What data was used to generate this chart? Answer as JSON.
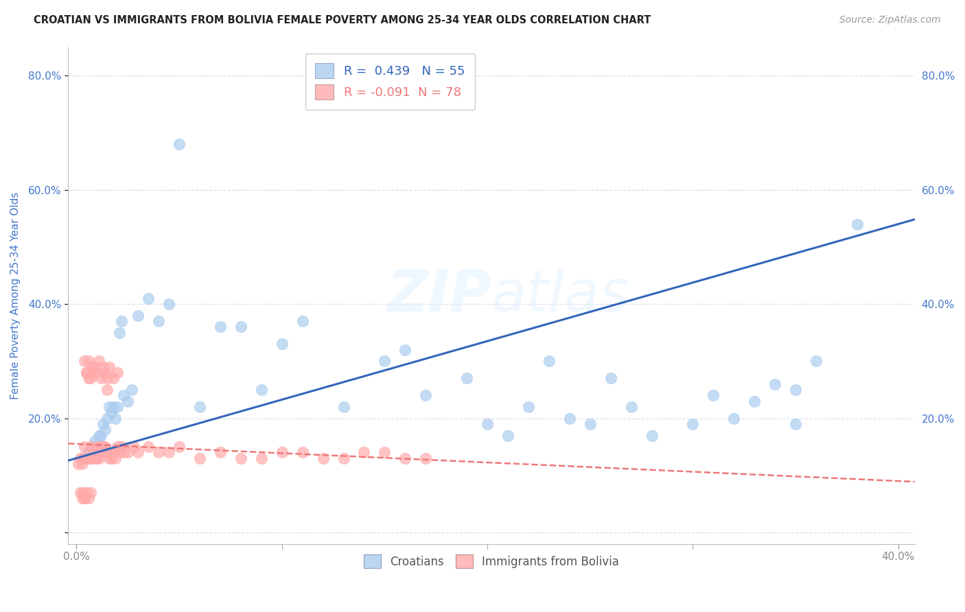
{
  "title": "CROATIAN VS IMMIGRANTS FROM BOLIVIA FEMALE POVERTY AMONG 25-34 YEAR OLDS CORRELATION CHART",
  "source": "Source: ZipAtlas.com",
  "ylabel": "Female Poverty Among 25-34 Year Olds",
  "xlim": [
    -0.004,
    0.408
  ],
  "ylim": [
    -0.02,
    0.85
  ],
  "x_ticks": [
    0.0,
    0.1,
    0.2,
    0.3,
    0.4
  ],
  "x_tick_labels": [
    "0.0%",
    "",
    "",
    "",
    "40.0%"
  ],
  "y_ticks": [
    0.0,
    0.2,
    0.4,
    0.6,
    0.8
  ],
  "y_tick_labels": [
    "",
    "20.0%",
    "40.0%",
    "60.0%",
    "80.0%"
  ],
  "croatian_R": 0.439,
  "croatian_N": 55,
  "bolivia_R": -0.091,
  "bolivia_N": 78,
  "blue_scatter_color": "#AACCEE",
  "pink_scatter_color": "#FFAAAA",
  "blue_line_color": "#3366BB",
  "pink_line_color": "#EE7777",
  "axis_color": "#4477CC",
  "grid_color": "#DDDDEE",
  "watermark": "ZIPatlas",
  "legend_label_croatian": "Croatians",
  "legend_label_bolivia": "Immigrants from Bolivia",
  "croatian_x": [
    0.005,
    0.006,
    0.007,
    0.008,
    0.009,
    0.01,
    0.011,
    0.012,
    0.013,
    0.014,
    0.015,
    0.016,
    0.017,
    0.018,
    0.019,
    0.02,
    0.021,
    0.022,
    0.023,
    0.025,
    0.027,
    0.03,
    0.035,
    0.04,
    0.045,
    0.05,
    0.06,
    0.07,
    0.08,
    0.09,
    0.1,
    0.11,
    0.13,
    0.15,
    0.16,
    0.17,
    0.19,
    0.2,
    0.21,
    0.22,
    0.23,
    0.24,
    0.25,
    0.26,
    0.27,
    0.28,
    0.3,
    0.31,
    0.32,
    0.33,
    0.34,
    0.35,
    0.36,
    0.38,
    0.35
  ],
  "croatian_y": [
    0.13,
    0.14,
    0.13,
    0.15,
    0.16,
    0.14,
    0.17,
    0.17,
    0.19,
    0.18,
    0.2,
    0.22,
    0.21,
    0.22,
    0.2,
    0.22,
    0.35,
    0.37,
    0.24,
    0.23,
    0.25,
    0.38,
    0.41,
    0.37,
    0.4,
    0.68,
    0.22,
    0.36,
    0.36,
    0.25,
    0.33,
    0.37,
    0.22,
    0.3,
    0.32,
    0.24,
    0.27,
    0.19,
    0.17,
    0.22,
    0.3,
    0.2,
    0.19,
    0.27,
    0.22,
    0.17,
    0.19,
    0.24,
    0.2,
    0.23,
    0.26,
    0.25,
    0.3,
    0.54,
    0.19
  ],
  "bolivia_x": [
    0.001,
    0.002,
    0.003,
    0.003,
    0.004,
    0.004,
    0.005,
    0.005,
    0.006,
    0.006,
    0.007,
    0.007,
    0.008,
    0.008,
    0.009,
    0.009,
    0.01,
    0.01,
    0.011,
    0.011,
    0.012,
    0.012,
    0.013,
    0.013,
    0.014,
    0.015,
    0.015,
    0.016,
    0.017,
    0.017,
    0.018,
    0.019,
    0.02,
    0.021,
    0.022,
    0.023,
    0.025,
    0.028,
    0.03,
    0.035,
    0.04,
    0.045,
    0.05,
    0.06,
    0.07,
    0.08,
    0.09,
    0.1,
    0.11,
    0.12,
    0.13,
    0.14,
    0.15,
    0.16,
    0.17,
    0.004,
    0.005,
    0.006,
    0.007,
    0.008,
    0.009,
    0.01,
    0.011,
    0.012,
    0.013,
    0.014,
    0.015,
    0.016,
    0.018,
    0.02,
    0.003,
    0.004,
    0.005,
    0.006,
    0.007,
    0.002,
    0.003,
    0.004
  ],
  "bolivia_y": [
    0.12,
    0.13,
    0.12,
    0.13,
    0.13,
    0.15,
    0.28,
    0.13,
    0.27,
    0.13,
    0.15,
    0.13,
    0.13,
    0.28,
    0.13,
    0.14,
    0.15,
    0.13,
    0.14,
    0.13,
    0.15,
    0.14,
    0.15,
    0.14,
    0.15,
    0.14,
    0.25,
    0.13,
    0.13,
    0.14,
    0.14,
    0.13,
    0.15,
    0.14,
    0.15,
    0.14,
    0.14,
    0.15,
    0.14,
    0.15,
    0.14,
    0.14,
    0.15,
    0.13,
    0.14,
    0.13,
    0.13,
    0.14,
    0.14,
    0.13,
    0.13,
    0.14,
    0.14,
    0.13,
    0.13,
    0.3,
    0.28,
    0.3,
    0.27,
    0.29,
    0.29,
    0.28,
    0.3,
    0.27,
    0.29,
    0.28,
    0.27,
    0.29,
    0.27,
    0.28,
    0.07,
    0.06,
    0.07,
    0.06,
    0.07,
    0.07,
    0.06,
    0.06
  ]
}
